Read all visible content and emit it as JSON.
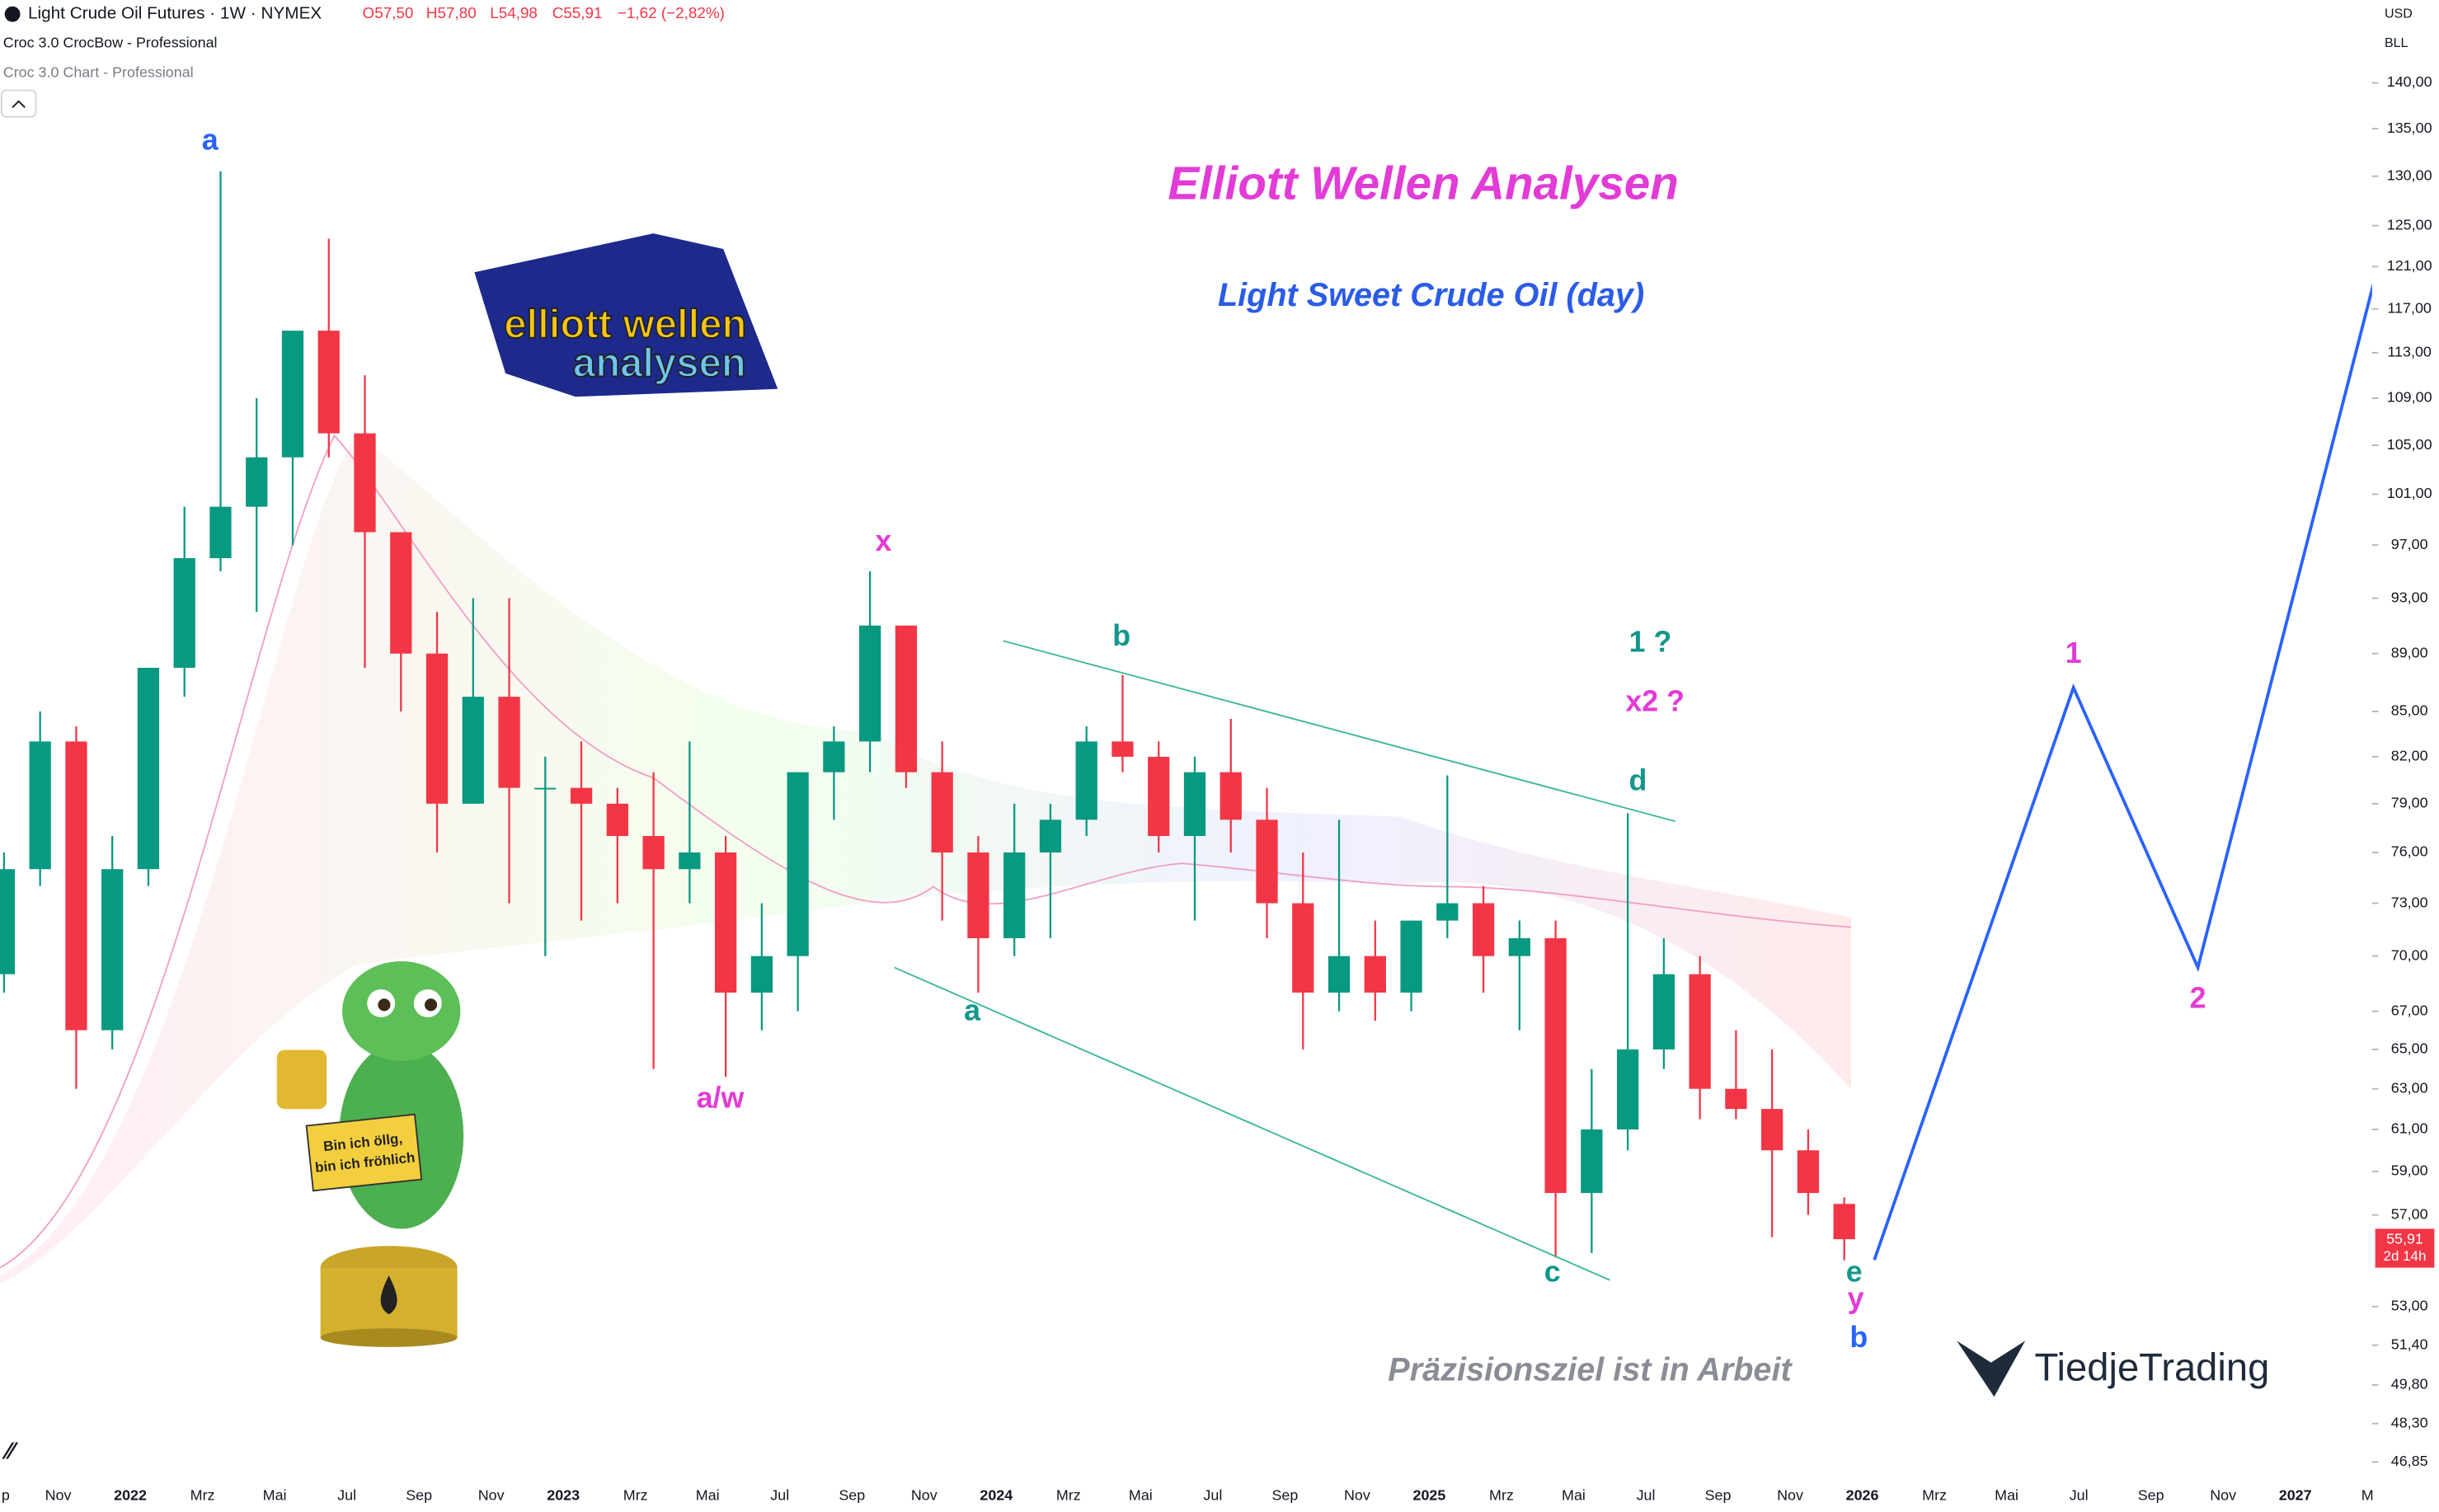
{
  "header": {
    "symbol": "Light Crude Oil Futures · 1W · NYMEX",
    "ohlc": [
      "O57,50",
      "H57,80",
      "L54,98",
      "C55,91",
      "−1,62 (−2,82%)"
    ],
    "indicator1": "Croc 3.0 CrocBow - Professional",
    "indicator2": "Croc 3.0 Chart - Professional",
    "currency": "USD",
    "unit": "BLL",
    "last_price": "55,91",
    "countdown": "2d 14h"
  },
  "chart_data": {
    "type": "candlestick",
    "title": "Elliott Wellen Analysen",
    "subtitle": "Light Sweet Crude Oil (day)",
    "note": "Präzisionsziel ist in Arbeit",
    "brand": "TiedjeTrading",
    "logo_text": [
      "elliott wellen",
      "analysen"
    ],
    "sign_text": [
      "Bin ich öllg,",
      "bin ich fröhlich"
    ],
    "up_color": "#089981",
    "down_color": "#f23645",
    "log_scale": true,
    "annotations": [
      {
        "text": "a",
        "color": "#2962ff"
      },
      {
        "text": "x",
        "color": "#e23bd6"
      },
      {
        "text": "a/w",
        "color": "#e23bd6"
      },
      {
        "text": "b",
        "color": "#12968a"
      },
      {
        "text": "a",
        "color": "#12968a"
      },
      {
        "text": "1 ?",
        "color": "#12968a"
      },
      {
        "text": "x2 ?",
        "color": "#e23bd6"
      },
      {
        "text": "d",
        "color": "#12968a"
      },
      {
        "text": "c",
        "color": "#12968a"
      },
      {
        "text": "e",
        "color": "#12968a"
      },
      {
        "text": "y",
        "color": "#e23bd6"
      },
      {
        "text": "b",
        "color": "#2962ff"
      },
      {
        "text": "1",
        "color": "#e23bd6"
      },
      {
        "text": "2",
        "color": "#e23bd6"
      }
    ],
    "x": [
      "2021-09",
      "2021-10",
      "2021-11",
      "2021-12",
      "2022-01",
      "2022-02",
      "2022-03",
      "2022-04",
      "2022-05",
      "2022-06",
      "2022-07",
      "2022-08",
      "2022-09",
      "2022-10",
      "2022-11",
      "2022-12",
      "2023-01",
      "2023-02",
      "2023-03",
      "2023-04",
      "2023-05",
      "2023-06",
      "2023-07",
      "2023-08",
      "2023-09",
      "2023-10",
      "2023-11",
      "2023-12",
      "2024-01",
      "2024-02",
      "2024-03",
      "2024-04",
      "2024-05",
      "2024-06",
      "2024-07",
      "2024-08",
      "2024-09",
      "2024-10",
      "2024-11",
      "2024-12",
      "2025-01",
      "2025-02",
      "2025-03",
      "2025-04",
      "2025-05",
      "2025-06",
      "2025-07",
      "2025-08",
      "2025-09",
      "2025-10",
      "2025-11",
      "2025-12"
    ],
    "open": [
      69,
      75,
      83,
      66,
      75,
      88,
      96,
      100,
      104,
      115,
      106,
      98,
      89,
      79,
      86,
      80,
      80,
      79,
      77,
      75,
      76,
      68,
      70,
      81,
      83,
      91,
      81,
      76,
      71,
      76,
      78,
      83,
      82,
      77,
      81,
      78,
      73,
      68,
      70,
      68,
      72,
      73,
      70,
      71,
      58,
      61,
      65,
      69,
      63,
      62,
      60,
      57.5
    ],
    "high": [
      76,
      85,
      84,
      77,
      88,
      100,
      130.5,
      109,
      115,
      123.7,
      111,
      98,
      92,
      93,
      93,
      82,
      83,
      80,
      81,
      83,
      77,
      73,
      81,
      84,
      95,
      91,
      83,
      77,
      79,
      79,
      84,
      87.5,
      83,
      82,
      84.5,
      80,
      76,
      78,
      72,
      72,
      80.8,
      74,
      72,
      72,
      64,
      78.4,
      71,
      70,
      66,
      65,
      61,
      57.8
    ],
    "low": [
      68,
      74,
      63,
      65,
      74,
      86,
      95,
      92,
      97,
      104,
      88,
      85,
      76,
      79,
      73,
      70,
      72,
      73,
      64,
      73,
      63.6,
      66,
      67,
      78,
      81,
      80,
      72,
      68,
      70,
      71,
      77,
      81,
      76,
      72,
      76,
      71,
      65,
      67,
      66.5,
      67,
      71,
      68,
      66,
      55.1,
      55.3,
      60,
      64,
      61.5,
      61.5,
      56,
      57,
      54.98
    ],
    "close": [
      75,
      83,
      66,
      75,
      88,
      96,
      100,
      104,
      115,
      106,
      98,
      89,
      79,
      86,
      80,
      80,
      79,
      77,
      75,
      76,
      68,
      70,
      81,
      83,
      91,
      81,
      76,
      71,
      76,
      78,
      83,
      82,
      77,
      81,
      78,
      73,
      68,
      70,
      68,
      72,
      73,
      70,
      71,
      58,
      61,
      65,
      69,
      63,
      62,
      60,
      58,
      55.91
    ],
    "xlim": [
      "2021-09",
      "2027-03"
    ],
    "xticks": [
      {
        "value": "2021-09",
        "label": "p"
      },
      {
        "value": "2021-11",
        "label": "Nov"
      },
      {
        "value": "2022-01",
        "label": "2022"
      },
      {
        "value": "2022-03",
        "label": "Mrz"
      },
      {
        "value": "2022-05",
        "label": "Mai"
      },
      {
        "value": "2022-07",
        "label": "Jul"
      },
      {
        "value": "2022-09",
        "label": "Sep"
      },
      {
        "value": "2022-11",
        "label": "Nov"
      },
      {
        "value": "2023-01",
        "label": "2023"
      },
      {
        "value": "2023-03",
        "label": "Mrz"
      },
      {
        "value": "2023-05",
        "label": "Mai"
      },
      {
        "value": "2023-07",
        "label": "Jul"
      },
      {
        "value": "2023-09",
        "label": "Sep"
      },
      {
        "value": "2023-11",
        "label": "Nov"
      },
      {
        "value": "2024-01",
        "label": "2024"
      },
      {
        "value": "2024-03",
        "label": "Mrz"
      },
      {
        "value": "2024-05",
        "label": "Mai"
      },
      {
        "value": "2024-07",
        "label": "Jul"
      },
      {
        "value": "2024-09",
        "label": "Sep"
      },
      {
        "value": "2024-11",
        "label": "Nov"
      },
      {
        "value": "2025-01",
        "label": "2025"
      },
      {
        "value": "2025-03",
        "label": "Mrz"
      },
      {
        "value": "2025-05",
        "label": "Mai"
      },
      {
        "value": "2025-07",
        "label": "Jul"
      },
      {
        "value": "2025-09",
        "label": "Sep"
      },
      {
        "value": "2025-11",
        "label": "Nov"
      },
      {
        "value": "2026-01",
        "label": "2026"
      },
      {
        "value": "2026-03",
        "label": "Mrz"
      },
      {
        "value": "2026-05",
        "label": "Mai"
      },
      {
        "value": "2026-07",
        "label": "Jul"
      },
      {
        "value": "2026-09",
        "label": "Sep"
      },
      {
        "value": "2026-11",
        "label": "Nov"
      },
      {
        "value": "2027-01",
        "label": "2027"
      },
      {
        "value": "2027-03",
        "label": "M"
      }
    ],
    "ylim": [
      46.27,
      149.5
    ],
    "yticks": [
      {
        "value": 140,
        "label": "140,00"
      },
      {
        "value": 135,
        "label": "135,00"
      },
      {
        "value": 130,
        "label": "130,00"
      },
      {
        "value": 125,
        "label": "125,00"
      },
      {
        "value": 121,
        "label": "121,00"
      },
      {
        "value": 117,
        "label": "117,00"
      },
      {
        "value": 113,
        "label": "113,00"
      },
      {
        "value": 109,
        "label": "109,00"
      },
      {
        "value": 105,
        "label": "105,00"
      },
      {
        "value": 101,
        "label": "101,00"
      },
      {
        "value": 97,
        "label": "97,00"
      },
      {
        "value": 93,
        "label": "93,00"
      },
      {
        "value": 89,
        "label": "89,00"
      },
      {
        "value": 85,
        "label": "85,00"
      },
      {
        "value": 82,
        "label": "82,00"
      },
      {
        "value": 79,
        "label": "79,00"
      },
      {
        "value": 76,
        "label": "76,00"
      },
      {
        "value": 73,
        "label": "73,00"
      },
      {
        "value": 70,
        "label": "70,00"
      },
      {
        "value": 67,
        "label": "67,00"
      },
      {
        "value": 65,
        "label": "65,00"
      },
      {
        "value": 63,
        "label": "63,00"
      },
      {
        "value": 61,
        "label": "61,00"
      },
      {
        "value": 59,
        "label": "59,00"
      },
      {
        "value": 57,
        "label": "57,00"
      },
      {
        "value": 53,
        "label": "53,00"
      },
      {
        "value": 51.4,
        "label": "51,40"
      },
      {
        "value": 49.8,
        "label": "49,80"
      },
      {
        "value": 48.3,
        "label": "48,30"
      },
      {
        "value": 46.85,
        "label": "46,85"
      }
    ]
  }
}
